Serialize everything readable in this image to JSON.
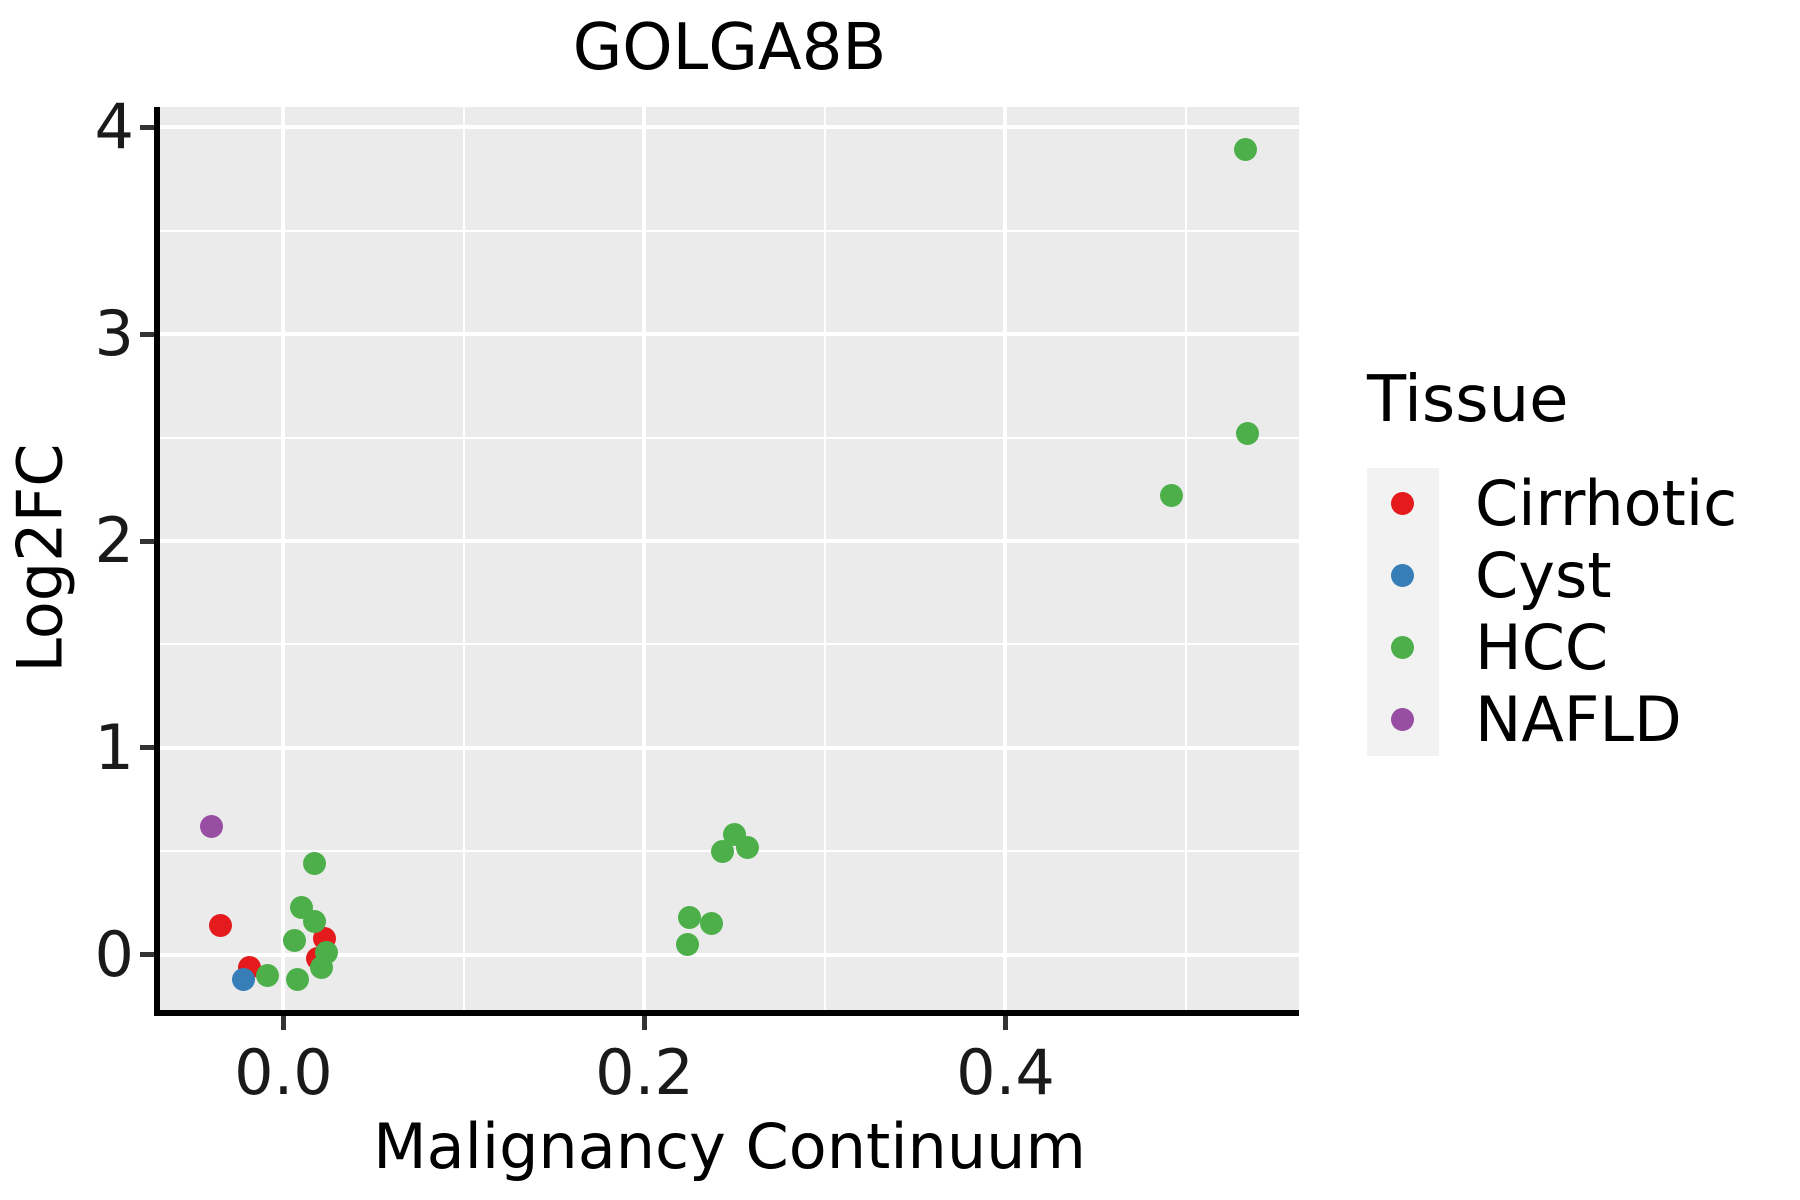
{
  "title": "GOLGA8B",
  "legend": {
    "title": "Tissue"
  },
  "colors": {
    "panel_background": "#ebebeb",
    "gridline": "#ffffff",
    "legend_key_background": "#f2f2f2",
    "cirrhotic": "#e41a1c",
    "cyst": "#377eb8",
    "hcc": "#4daf4a",
    "nafld": "#984ea3"
  },
  "chart_data": {
    "type": "scatter",
    "title": "GOLGA8B",
    "xlabel": "Malignancy Continuum",
    "ylabel": "Log2FC",
    "xlim": [
      -0.0684,
      0.5626
    ],
    "ylim": [
      -0.266,
      4.097
    ],
    "grid": "major and minor, white on gray panel",
    "legend_position": "right",
    "legend_title": "Tissue",
    "x_ticks": [
      {
        "value": 0.0,
        "label": "0.0"
      },
      {
        "value": 0.2,
        "label": "0.2"
      },
      {
        "value": 0.4,
        "label": "0.4"
      }
    ],
    "y_ticks": [
      {
        "value": 0,
        "label": "0"
      },
      {
        "value": 1,
        "label": "1"
      },
      {
        "value": 2,
        "label": "2"
      },
      {
        "value": 3,
        "label": "3"
      },
      {
        "value": 4,
        "label": "4"
      }
    ],
    "x_minor_ticks": [
      0.1,
      0.3,
      0.5
    ],
    "y_minor_ticks": [
      0.5,
      1.5,
      2.5,
      3.5
    ],
    "series": [
      {
        "name": "Cirrhotic",
        "color": "#e41a1c",
        "points": [
          [
            -0.035,
            0.14
          ],
          [
            0.023,
            0.08
          ],
          [
            0.019,
            -0.015
          ],
          [
            -0.019,
            -0.06
          ]
        ]
      },
      {
        "name": "Cyst",
        "color": "#377eb8",
        "points": [
          [
            -0.022,
            -0.12
          ]
        ]
      },
      {
        "name": "HCC",
        "color": "#4daf4a",
        "points": [
          [
            0.017,
            0.44
          ],
          [
            0.01,
            0.23
          ],
          [
            0.017,
            0.16
          ],
          [
            0.006,
            0.07
          ],
          [
            0.024,
            0.01
          ],
          [
            0.021,
            -0.06
          ],
          [
            0.008,
            -0.12
          ],
          [
            -0.009,
            -0.1
          ],
          [
            0.25,
            0.58
          ],
          [
            0.243,
            0.5
          ],
          [
            0.257,
            0.52
          ],
          [
            0.225,
            0.18
          ],
          [
            0.237,
            0.15
          ],
          [
            0.224,
            0.05
          ],
          [
            0.533,
            3.89
          ],
          [
            0.534,
            2.52
          ],
          [
            0.492,
            2.22
          ]
        ]
      },
      {
        "name": "NAFLD",
        "color": "#984ea3",
        "points": [
          [
            -0.04,
            0.62
          ]
        ]
      }
    ]
  }
}
